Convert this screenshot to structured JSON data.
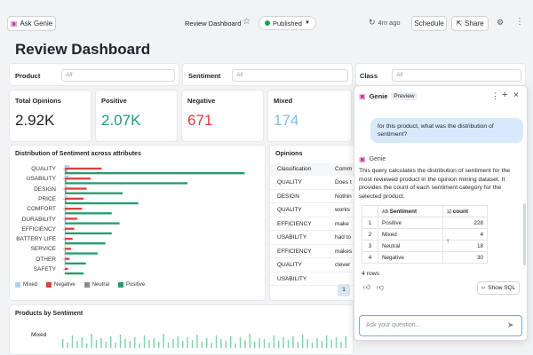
{
  "topbar": {
    "ask_genie": "Ask Genie",
    "dashboard_name": "Review Dashboard",
    "published": "Published",
    "time_ago": "4m ago",
    "schedule": "Schedule",
    "share": "Share"
  },
  "page_title": "Review Dashboard",
  "filters": [
    {
      "label": "Product",
      "value": "All"
    },
    {
      "label": "Sentiment",
      "value": "All"
    },
    {
      "label": "Class",
      "value": "All"
    }
  ],
  "kpis": [
    {
      "label": "Total Opinions",
      "value": "2.92K",
      "color": "#1f2328"
    },
    {
      "label": "Positive",
      "value": "2.07K",
      "color": "#1e9e6e"
    },
    {
      "label": "Negative",
      "value": "671",
      "color": "#d63c3c"
    },
    {
      "label": "Mixed",
      "value": "174",
      "color": "#7fbfe0"
    }
  ],
  "chart_data": {
    "type": "bar",
    "title": "Distribution of Sentiment across attributes",
    "categories": [
      "QUALITY",
      "USABILITY",
      "DESIGN",
      "PRICE",
      "COMFORT",
      "DURABILITY",
      "EFFICIENCY",
      "BATTERY LIFE",
      "SERVICE",
      "OTHER",
      "SAFETY"
    ],
    "series": [
      {
        "name": "Mixed",
        "color": "#a9d4ee",
        "values": [
          6,
          5,
          3,
          3,
          2,
          2,
          1,
          1,
          1,
          1,
          0
        ]
      },
      {
        "name": "Negative",
        "color": "#d9413b",
        "values": [
          47,
          33,
          28,
          24,
          22,
          16,
          12,
          10,
          8,
          6,
          4
        ]
      },
      {
        "name": "Neutral",
        "color": "#8c8c8c",
        "values": [
          3,
          2,
          2,
          2,
          1,
          1,
          1,
          1,
          1,
          1,
          0
        ]
      },
      {
        "name": "Positive",
        "color": "#1e9e6e",
        "values": [
          230,
          157,
          74,
          94,
          60,
          70,
          60,
          52,
          42,
          27,
          24
        ]
      }
    ],
    "xlim": [
      0,
      250
    ],
    "orientation": "horizontal",
    "legend_position": "bottom"
  },
  "opinions": {
    "title": "Opinions",
    "headers": [
      "Classification",
      "Comm"
    ],
    "rows": [
      [
        "QUALITY",
        "Does t"
      ],
      [
        "DESIGN",
        "Nothin"
      ],
      [
        "QUALITY",
        "works"
      ],
      [
        "EFFICIENCY",
        "make"
      ],
      [
        "USABILITY",
        "had to"
      ],
      [
        "EFFICIENCY",
        "makes"
      ],
      [
        "QUALITY",
        "clever"
      ],
      [
        "USABILITY",
        ""
      ]
    ],
    "page": "1"
  },
  "products_by_sentiment": {
    "title": "Products by Sentiment",
    "row_label": "Mixed"
  },
  "genie": {
    "title": "Genie",
    "badge": "Preview",
    "user_question": "for this product, what was the distribution of sentiment?",
    "assistant_name": "Genie",
    "response": "This query calculates the distribution of sentiment for the most reviewed product in the opinion mining dataset. It provides the count of each sentiment category for the selected product.",
    "table": {
      "headers": [
        "",
        "Sentiment",
        "count"
      ],
      "rows": [
        [
          "1",
          "Positive",
          "228"
        ],
        [
          "2",
          "Mixed",
          "4"
        ],
        [
          "3",
          "Neutral",
          "18"
        ],
        [
          "4",
          "Negative",
          "30"
        ]
      ]
    },
    "row_count": "4 rows",
    "show_sql": "Show SQL",
    "input_placeholder": "Ask your question..."
  }
}
